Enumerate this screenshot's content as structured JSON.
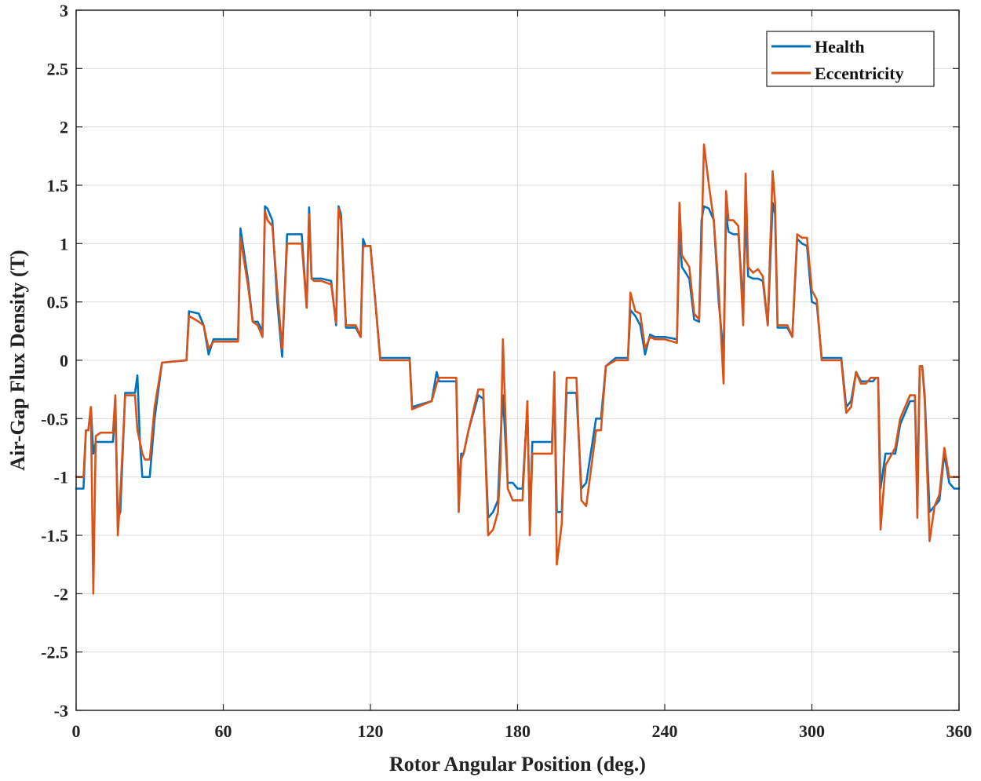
{
  "chart_data": {
    "type": "line",
    "title": "",
    "xlabel": "Rotor Angular Position (deg.)",
    "ylabel": "Air-Gap Flux Density (T)",
    "xlim": [
      0,
      360
    ],
    "ylim": [
      -3,
      3
    ],
    "xticks": [
      0,
      60,
      120,
      180,
      240,
      300,
      360
    ],
    "yticks": [
      -3,
      -2.5,
      -2,
      -1.5,
      -1,
      -0.5,
      0,
      0.5,
      1,
      1.5,
      2,
      2.5,
      3
    ],
    "xtick_labels": [
      "0",
      "60",
      "120",
      "180",
      "240",
      "300",
      "360"
    ],
    "ytick_labels": [
      "-3",
      "-2.5",
      "-2",
      "-1.5",
      "-1",
      "-0.5",
      "0",
      "0.5",
      "1",
      "1.5",
      "2",
      "2.5",
      "3"
    ],
    "grid": true,
    "legend_position": "top-right",
    "series": [
      {
        "name": "Health",
        "color": "#0072BD",
        "x": [
          0,
          3,
          4,
          5,
          6,
          7,
          8,
          10,
          14,
          15,
          16,
          17,
          18,
          20,
          24,
          25,
          26,
          27,
          28,
          30,
          32,
          35,
          45,
          46,
          50,
          52,
          54,
          56,
          60,
          66,
          67,
          70,
          72,
          74,
          76,
          77,
          78,
          80,
          82,
          84,
          86,
          88,
          92,
          94,
          95,
          96,
          97,
          98,
          100,
          104,
          106,
          107,
          108,
          110,
          112,
          114,
          116,
          117,
          118,
          120,
          122,
          124,
          136,
          137,
          145,
          147,
          148,
          150,
          155,
          156,
          157,
          158,
          160,
          164,
          166,
          168,
          170,
          172,
          173,
          174,
          176,
          178,
          180,
          182,
          184,
          185,
          186,
          188,
          194,
          195,
          196,
          198,
          200,
          204,
          206,
          208,
          212,
          214,
          216,
          220,
          225,
          226,
          228,
          230,
          232,
          234,
          236,
          240,
          245,
          246,
          247,
          250,
          252,
          254,
          255,
          256,
          258,
          260,
          262,
          264,
          265,
          266,
          268,
          270,
          272,
          273,
          274,
          276,
          278,
          280,
          282,
          284,
          285,
          286,
          288,
          290,
          292,
          294,
          296,
          298,
          300,
          302,
          304,
          306,
          308,
          310,
          312,
          314,
          316,
          318,
          320,
          322,
          324,
          325,
          326,
          327,
          328,
          330,
          334,
          336,
          340,
          342,
          343,
          344,
          345,
          346,
          348,
          350,
          352,
          354,
          356,
          358,
          360
        ],
        "values": [
          -1.1,
          -1.1,
          -0.6,
          -0.6,
          -0.4,
          -0.8,
          -0.7,
          -0.7,
          -0.7,
          -0.7,
          -0.4,
          -1.35,
          -1.3,
          -0.28,
          -0.28,
          -0.13,
          -0.7,
          -1.0,
          -1.0,
          -1.0,
          -0.5,
          -0.02,
          0.0,
          0.42,
          0.4,
          0.3,
          0.05,
          0.18,
          0.18,
          0.18,
          1.13,
          0.7,
          0.33,
          0.33,
          0.25,
          1.32,
          1.3,
          1.2,
          0.5,
          0.03,
          1.08,
          1.08,
          1.08,
          0.45,
          1.31,
          0.7,
          0.7,
          0.7,
          0.7,
          0.68,
          0.3,
          1.32,
          1.25,
          0.28,
          0.28,
          0.28,
          0.2,
          1.04,
          0.98,
          0.98,
          0.5,
          0.02,
          0.02,
          -0.4,
          -0.35,
          -0.1,
          -0.18,
          -0.18,
          -0.18,
          -1.15,
          -0.8,
          -0.8,
          -0.6,
          -0.3,
          -0.33,
          -1.35,
          -1.3,
          -1.2,
          -0.7,
          -0.3,
          -1.05,
          -1.05,
          -1.1,
          -1.1,
          -0.4,
          -1.4,
          -0.7,
          -0.7,
          -0.7,
          -0.2,
          -1.3,
          -1.3,
          -0.28,
          -0.28,
          -1.1,
          -1.05,
          -0.5,
          -0.5,
          -0.05,
          0.02,
          0.02,
          0.43,
          0.38,
          0.3,
          0.05,
          0.22,
          0.2,
          0.2,
          0.18,
          1.1,
          0.8,
          0.7,
          0.35,
          0.33,
          1.2,
          1.32,
          1.3,
          1.2,
          0.5,
          0.05,
          1.25,
          1.1,
          1.08,
          1.08,
          0.48,
          1.25,
          0.72,
          0.7,
          0.7,
          0.68,
          0.3,
          1.35,
          1.25,
          0.28,
          0.28,
          0.28,
          0.2,
          1.04,
          1.0,
          0.98,
          0.5,
          0.48,
          0.02,
          0.02,
          0.02,
          0.02,
          0.02,
          -0.4,
          -0.35,
          -0.1,
          -0.18,
          -0.18,
          -0.18,
          -0.18,
          -0.15,
          -0.15,
          -1.1,
          -0.8,
          -0.8,
          -0.55,
          -0.35,
          -0.35,
          -1.1,
          -0.05,
          -0.05,
          -0.3,
          -1.3,
          -1.25,
          -1.2,
          -0.8,
          -1.05,
          -1.1,
          -1.1
        ]
      },
      {
        "name": "Eccentricity",
        "color": "#D95319",
        "x": [
          0,
          3,
          4,
          5,
          6,
          7,
          8,
          10,
          14,
          15,
          16,
          17,
          18,
          20,
          24,
          25,
          26,
          27,
          28,
          30,
          32,
          35,
          45,
          46,
          50,
          52,
          54,
          56,
          60,
          66,
          67,
          70,
          72,
          74,
          76,
          77,
          78,
          80,
          82,
          84,
          86,
          88,
          92,
          94,
          95,
          96,
          97,
          98,
          100,
          104,
          106,
          107,
          108,
          110,
          112,
          114,
          116,
          117,
          118,
          120,
          122,
          124,
          136,
          137,
          145,
          147,
          148,
          150,
          155,
          156,
          157,
          158,
          160,
          164,
          166,
          168,
          170,
          172,
          173,
          174,
          176,
          178,
          180,
          182,
          184,
          185,
          186,
          188,
          194,
          195,
          196,
          198,
          200,
          204,
          206,
          208,
          212,
          214,
          216,
          220,
          225,
          226,
          228,
          230,
          232,
          234,
          236,
          240,
          245,
          246,
          247,
          250,
          252,
          254,
          255,
          256,
          258,
          260,
          262,
          264,
          265,
          266,
          268,
          270,
          272,
          273,
          274,
          276,
          278,
          280,
          282,
          284,
          285,
          286,
          288,
          290,
          292,
          294,
          296,
          298,
          300,
          302,
          304,
          306,
          308,
          310,
          312,
          314,
          316,
          318,
          320,
          322,
          324,
          325,
          326,
          327,
          328,
          330,
          334,
          336,
          340,
          342,
          343,
          344,
          345,
          346,
          348,
          350,
          352,
          354,
          356,
          358,
          360
        ],
        "values": [
          -1.0,
          -1.0,
          -0.6,
          -0.6,
          -0.4,
          -2.0,
          -0.65,
          -0.62,
          -0.62,
          -0.62,
          -0.3,
          -1.5,
          -1.15,
          -0.3,
          -0.3,
          -0.6,
          -0.7,
          -0.8,
          -0.85,
          -0.85,
          -0.4,
          -0.02,
          0.0,
          0.38,
          0.33,
          0.3,
          0.1,
          0.16,
          0.16,
          0.16,
          1.05,
          0.65,
          0.33,
          0.3,
          0.2,
          1.28,
          1.2,
          1.15,
          0.6,
          0.1,
          1.0,
          1.0,
          1.0,
          0.45,
          1.25,
          0.7,
          0.68,
          0.68,
          0.68,
          0.65,
          0.32,
          1.3,
          1.2,
          0.3,
          0.3,
          0.3,
          0.2,
          0.97,
          0.98,
          0.98,
          0.5,
          0.0,
          0.0,
          -0.42,
          -0.35,
          -0.2,
          -0.15,
          -0.15,
          -0.15,
          -1.3,
          -0.85,
          -0.8,
          -0.6,
          -0.25,
          -0.25,
          -1.5,
          -1.45,
          -1.3,
          -0.9,
          0.18,
          -1.1,
          -1.2,
          -1.2,
          -1.2,
          -0.35,
          -1.5,
          -0.8,
          -0.8,
          -0.8,
          -0.1,
          -1.75,
          -1.4,
          -0.15,
          -0.15,
          -1.2,
          -1.25,
          -0.6,
          -0.6,
          -0.05,
          0.0,
          0.0,
          0.58,
          0.42,
          0.4,
          0.1,
          0.2,
          0.18,
          0.18,
          0.15,
          1.35,
          0.9,
          0.8,
          0.4,
          0.35,
          1.0,
          1.85,
          1.5,
          1.2,
          0.6,
          -0.2,
          1.45,
          1.2,
          1.2,
          1.15,
          0.3,
          1.6,
          0.8,
          0.75,
          0.78,
          0.72,
          0.3,
          1.62,
          1.35,
          0.3,
          0.3,
          0.3,
          0.2,
          1.08,
          1.05,
          1.05,
          0.6,
          0.52,
          0.0,
          0.0,
          0.0,
          0.0,
          0.0,
          -0.45,
          -0.4,
          -0.1,
          -0.2,
          -0.2,
          -0.15,
          -0.15,
          -0.15,
          -0.15,
          -1.45,
          -0.9,
          -0.75,
          -0.5,
          -0.3,
          -0.3,
          -1.35,
          -0.05,
          -0.05,
          -0.35,
          -1.55,
          -1.25,
          -1.15,
          -0.75,
          -1.0,
          -1.0,
          -1.0
        ]
      }
    ]
  }
}
